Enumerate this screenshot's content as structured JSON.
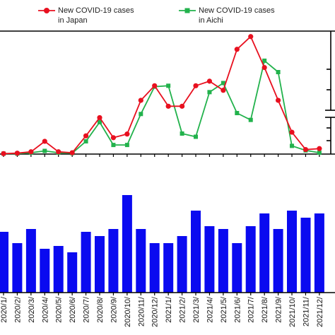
{
  "chart_data": [
    {
      "type": "line",
      "x": [
        "2020/1/",
        "2020/2/",
        "2020/3/",
        "2020/4/",
        "2020/5/",
        "2020/6/",
        "2020/7/",
        "2020/8/",
        "2020/9/",
        "2020/10/",
        "2020/11/",
        "2020/12/",
        "2021/1/",
        "2021/2/",
        "2021/3/",
        "2021/4/",
        "2021/5/",
        "2021/6/",
        "2021/7/",
        "2021/8/",
        "2021/9/",
        "2021/10/",
        "2021/11/",
        "2021/12/"
      ],
      "series": [
        {
          "name": "New COVID-19 cases\nin Japan",
          "color": "#e8101f",
          "marker": "circle",
          "values": [
            1,
            2,
            5,
            28,
            5,
            3,
            40,
            80,
            36,
            44,
            118,
            150,
            105,
            105,
            150,
            160,
            140,
            230,
            258,
            190,
            118,
            48,
            10,
            12
          ]
        },
        {
          "name": "New COVID-19 cases\nin Aichi",
          "color": "#22b24c",
          "marker": "square",
          "values": [
            1,
            1,
            3,
            7,
            3,
            2,
            28,
            70,
            20,
            20,
            88,
            148,
            150,
            45,
            38,
            136,
            156,
            90,
            75,
            205,
            180,
            18,
            8,
            3
          ]
        }
      ],
      "grid": false,
      "legend": "top"
    },
    {
      "type": "bar",
      "categories": [
        "2020/1/",
        "2020/2/",
        "2020/3/",
        "2020/4/",
        "2020/5/",
        "2020/6/",
        "2020/7/",
        "2020/8/",
        "2020/9/",
        "2020/10/",
        "2020/11/",
        "2020/12/",
        "2021/1/",
        "2021/2/",
        "2021/3/",
        "2021/4/",
        "2021/5/",
        "2021/6/",
        "2021/7/",
        "2021/8/",
        "2021/9/",
        "2021/10/",
        "2021/11/",
        "2021/12/"
      ],
      "values": [
        86,
        70,
        90,
        62,
        66,
        57,
        86,
        80,
        90,
        138,
        90,
        70,
        70,
        80,
        116,
        94,
        90,
        70,
        94,
        112,
        90,
        116,
        106,
        112
      ],
      "color": "#0a0af0",
      "grid": false
    }
  ]
}
